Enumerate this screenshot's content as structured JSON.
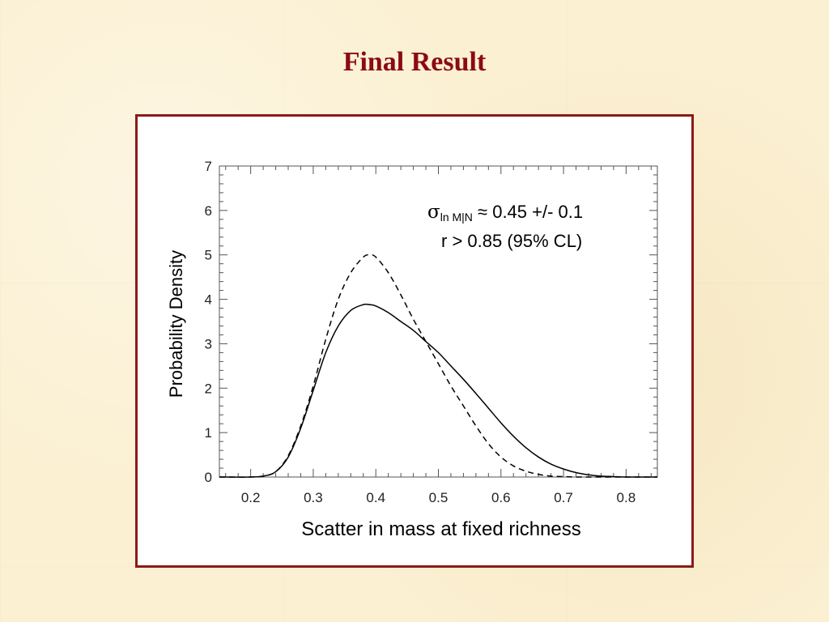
{
  "slide": {
    "title": "Final Result"
  },
  "colors": {
    "title": "#8b0a14",
    "frame": "#8b1a1a",
    "background": "#fbf0d2"
  },
  "chart_data": {
    "type": "line",
    "xlabel": "Scatter in mass at fixed richness",
    "ylabel": "Probability Density",
    "xlim": [
      0.15,
      0.85
    ],
    "ylim": [
      0,
      7
    ],
    "xticks": [
      "0.2",
      "0.3",
      "0.4",
      "0.5",
      "0.6",
      "0.7",
      "0.8"
    ],
    "yticks": [
      "0",
      "1",
      "2",
      "3",
      "4",
      "5",
      "6",
      "7"
    ],
    "grid": false,
    "annotation": {
      "sigma": "σ",
      "sigma_sub": "ln M|N",
      "line1_rest": " ≈ 0.45 +/- 0.1",
      "line2": "r > 0.85 (95% CL)"
    },
    "series": [
      {
        "style": "solid",
        "x": [
          0.15,
          0.2,
          0.22,
          0.24,
          0.26,
          0.28,
          0.3,
          0.32,
          0.34,
          0.36,
          0.38,
          0.39,
          0.4,
          0.42,
          0.44,
          0.46,
          0.48,
          0.5,
          0.52,
          0.54,
          0.56,
          0.58,
          0.6,
          0.62,
          0.64,
          0.66,
          0.68,
          0.7,
          0.72,
          0.74,
          0.76,
          0.78,
          0.8,
          0.85
        ],
        "y": [
          0,
          0,
          0.02,
          0.12,
          0.45,
          1.1,
          1.95,
          2.8,
          3.4,
          3.75,
          3.88,
          3.88,
          3.85,
          3.7,
          3.5,
          3.3,
          3.05,
          2.8,
          2.5,
          2.2,
          1.88,
          1.55,
          1.22,
          0.92,
          0.66,
          0.45,
          0.29,
          0.18,
          0.1,
          0.05,
          0.02,
          0.01,
          0,
          0
        ]
      },
      {
        "style": "dashed",
        "x": [
          0.15,
          0.2,
          0.22,
          0.24,
          0.26,
          0.28,
          0.3,
          0.32,
          0.34,
          0.36,
          0.38,
          0.39,
          0.4,
          0.42,
          0.44,
          0.46,
          0.48,
          0.5,
          0.52,
          0.54,
          0.56,
          0.58,
          0.6,
          0.62,
          0.64,
          0.66,
          0.68,
          0.7,
          0.72,
          0.74,
          0.8,
          0.85
        ],
        "y": [
          0,
          0,
          0.02,
          0.12,
          0.48,
          1.15,
          2.05,
          3.1,
          4.0,
          4.6,
          4.95,
          5.0,
          4.95,
          4.6,
          4.1,
          3.55,
          3.05,
          2.55,
          2.05,
          1.6,
          1.15,
          0.75,
          0.45,
          0.25,
          0.13,
          0.06,
          0.02,
          0.01,
          0,
          0,
          0,
          0
        ]
      }
    ]
  }
}
